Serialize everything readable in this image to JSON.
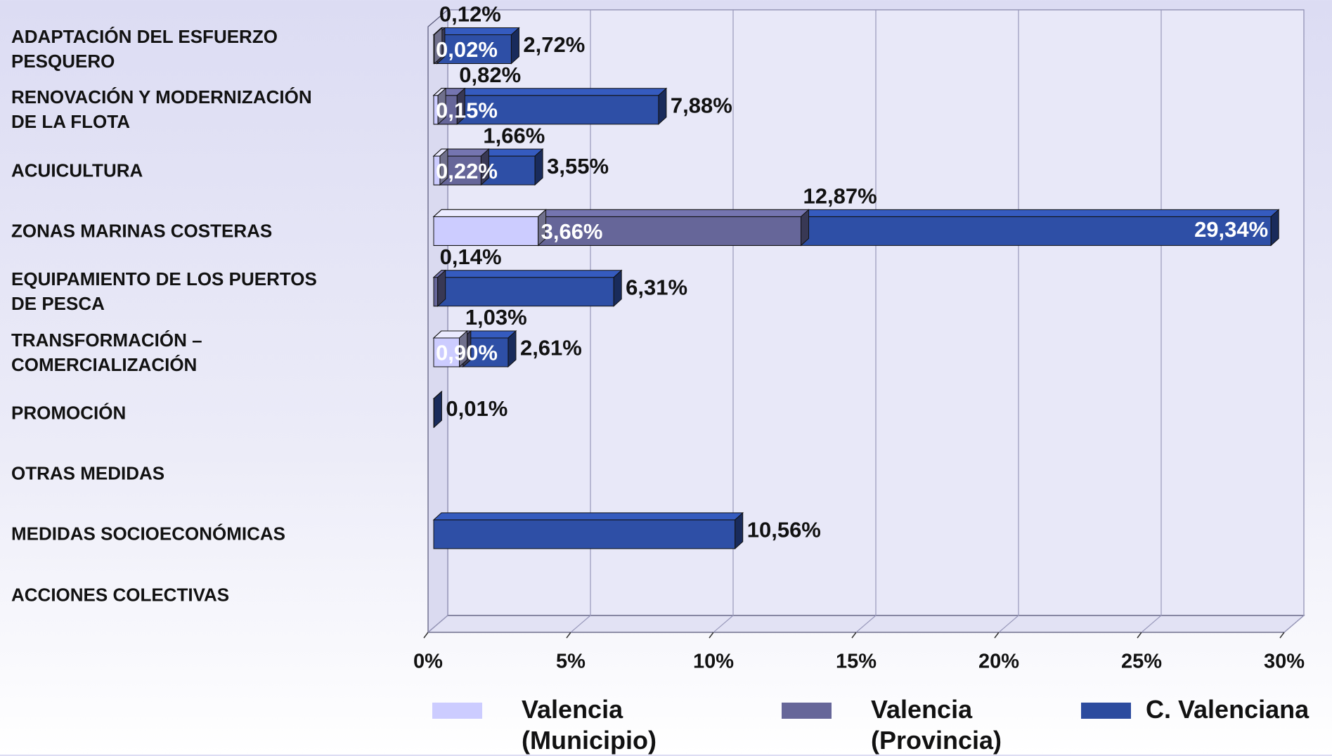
{
  "chart_data": {
    "type": "bar3d_overlap",
    "categories": [
      "ADAPTACIÓN DEL ESFUERZO\nPESQUERO",
      "RENOVACIÓN Y MODERNIZACIÓN\nDE LA FLOTA",
      "ACUICULTURA",
      "ZONAS MARINAS COSTERAS",
      "EQUIPAMIENTO DE LOS PUERTOS\nDE PESCA",
      "TRANSFORMACIÓN –\nCOMERCIALIZACIÓN",
      "PROMOCIÓN",
      "OTRAS MEDIDAS",
      "MEDIDAS SOCIOECONÓMICAS",
      "ACCIONES COLECTIVAS"
    ],
    "series": [
      {
        "name": "Valencia\n(Municipio)",
        "color": "#ccccff",
        "values": [
          0.02,
          0.15,
          0.22,
          3.66,
          null,
          0.9,
          null,
          null,
          null,
          null
        ],
        "value_labels": [
          "0,02%",
          "0,15%",
          "0,22%",
          "3,66%",
          null,
          "0,90%",
          null,
          null,
          null,
          null
        ]
      },
      {
        "name": "Valencia\n(Provincia)",
        "color": "#666699",
        "values": [
          0.12,
          0.82,
          1.66,
          12.87,
          0.14,
          1.03,
          null,
          null,
          null,
          null
        ],
        "value_labels": [
          "0,12%",
          "0,82%",
          "1,66%",
          "12,87%",
          "0,14%",
          "1,03%",
          null,
          null,
          null,
          null
        ]
      },
      {
        "name": "C. Valenciana",
        "color": "#2e4fa6",
        "values": [
          2.72,
          7.88,
          3.55,
          29.34,
          6.31,
          2.61,
          0.01,
          null,
          10.56,
          null
        ],
        "value_labels": [
          "2,72%",
          "7,88%",
          "3,55%",
          "29,34%",
          "6,31%",
          "2,61%",
          "0,01%",
          null,
          "10,56%",
          null
        ]
      }
    ],
    "xlim": [
      0,
      30
    ],
    "xticks": [
      {
        "value": 0,
        "label": "0%"
      },
      {
        "value": 5,
        "label": "5%"
      },
      {
        "value": 10,
        "label": "10%"
      },
      {
        "value": 15,
        "label": "15%"
      },
      {
        "value": 20,
        "label": "20%"
      },
      {
        "value": 25,
        "label": "25%"
      },
      {
        "value": 30,
        "label": "30%"
      }
    ],
    "grid": true,
    "legend": "bottom"
  }
}
